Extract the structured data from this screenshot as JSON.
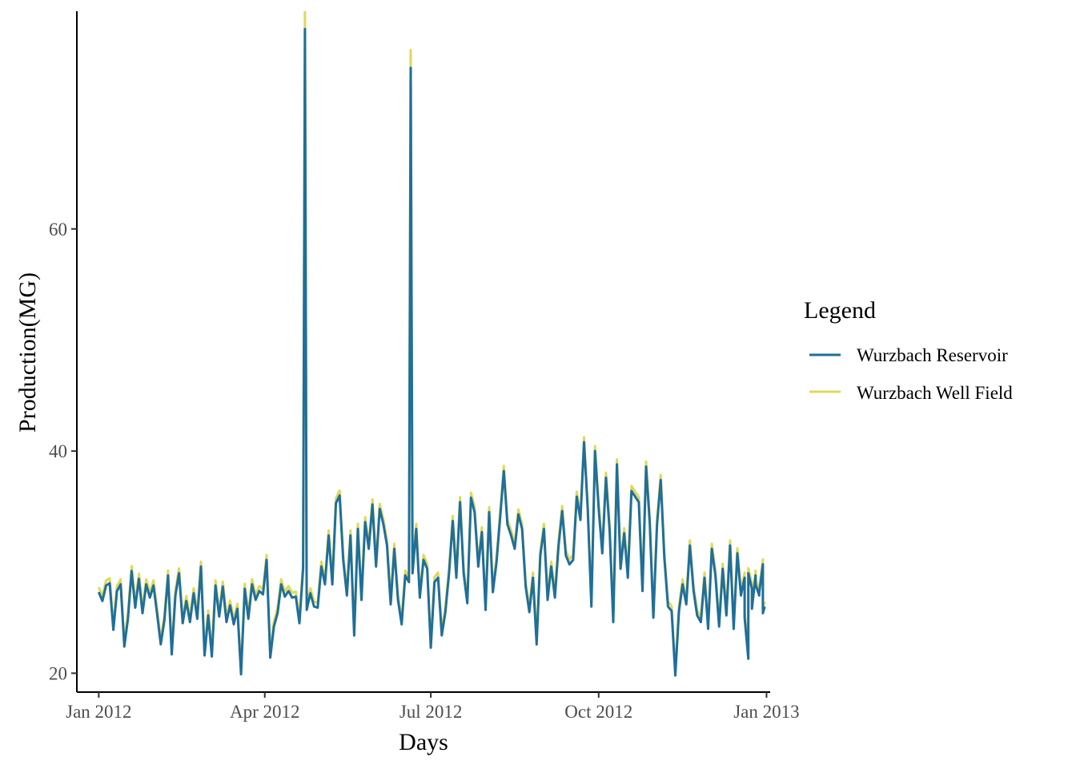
{
  "chart_data": {
    "type": "line",
    "title": "",
    "xlabel": "Days",
    "ylabel": "Production(MG)",
    "x_type": "date",
    "xlim": [
      "2011-12-20",
      "2013-01-03"
    ],
    "ylim": [
      18.3,
      79.6
    ],
    "x_ticks": [
      {
        "date": "2012-01-01",
        "label": "Jan 2012"
      },
      {
        "date": "2012-04-01",
        "label": "Apr 2012"
      },
      {
        "date": "2012-07-01",
        "label": "Jul 2012"
      },
      {
        "date": "2012-10-01",
        "label": "Oct 2012"
      },
      {
        "date": "2013-01-01",
        "label": "Jan 2013"
      }
    ],
    "y_ticks": [
      20,
      40,
      60
    ],
    "grid": false,
    "legend": {
      "title": "Legend",
      "placement": "right",
      "entries": [
        {
          "label": "Wurzbach Reservoir",
          "color": "#1f6f9a"
        },
        {
          "label": "Wurzbach Well Field",
          "color": "#e1d85a"
        }
      ]
    },
    "series": [
      {
        "name": "Wurzbach Reservoir",
        "color": "#1f6f9a",
        "offset_above": 0,
        "points": [
          [
            "2012-01-01",
            27.3
          ],
          [
            "2012-01-03",
            26.5
          ],
          [
            "2012-01-05",
            27.9
          ],
          [
            "2012-01-07",
            28.1
          ],
          [
            "2012-01-09",
            23.9
          ],
          [
            "2012-01-11",
            27.4
          ],
          [
            "2012-01-13",
            28.0
          ],
          [
            "2012-01-15",
            22.4
          ],
          [
            "2012-01-17",
            24.9
          ],
          [
            "2012-01-19",
            29.2
          ],
          [
            "2012-01-21",
            25.9
          ],
          [
            "2012-01-23",
            28.5
          ],
          [
            "2012-01-25",
            25.4
          ],
          [
            "2012-01-27",
            28.0
          ],
          [
            "2012-01-29",
            26.8
          ],
          [
            "2012-01-31",
            27.9
          ],
          [
            "2012-02-02",
            25.3
          ],
          [
            "2012-02-04",
            22.6
          ],
          [
            "2012-02-06",
            24.8
          ],
          [
            "2012-02-08",
            28.8
          ],
          [
            "2012-02-10",
            21.7
          ],
          [
            "2012-02-12",
            27.0
          ],
          [
            "2012-02-14",
            29.0
          ],
          [
            "2012-02-16",
            24.5
          ],
          [
            "2012-02-18",
            26.5
          ],
          [
            "2012-02-20",
            24.6
          ],
          [
            "2012-02-22",
            27.2
          ],
          [
            "2012-02-24",
            24.9
          ],
          [
            "2012-02-26",
            29.6
          ],
          [
            "2012-02-28",
            21.6
          ],
          [
            "2012-03-01",
            25.2
          ],
          [
            "2012-03-03",
            21.5
          ],
          [
            "2012-03-05",
            27.9
          ],
          [
            "2012-03-07",
            25.1
          ],
          [
            "2012-03-09",
            27.8
          ],
          [
            "2012-03-11",
            24.6
          ],
          [
            "2012-03-13",
            26.1
          ],
          [
            "2012-03-15",
            24.4
          ],
          [
            "2012-03-17",
            25.8
          ],
          [
            "2012-03-19",
            19.9
          ],
          [
            "2012-03-21",
            27.6
          ],
          [
            "2012-03-23",
            24.9
          ],
          [
            "2012-03-25",
            28.0
          ],
          [
            "2012-03-27",
            26.6
          ],
          [
            "2012-03-29",
            27.4
          ],
          [
            "2012-03-31",
            27.1
          ],
          [
            "2012-04-02",
            30.2
          ],
          [
            "2012-04-04",
            21.4
          ],
          [
            "2012-04-06",
            24.2
          ],
          [
            "2012-04-08",
            25.4
          ],
          [
            "2012-04-10",
            28.0
          ],
          [
            "2012-04-12",
            26.9
          ],
          [
            "2012-04-14",
            27.4
          ],
          [
            "2012-04-16",
            26.8
          ],
          [
            "2012-04-18",
            26.9
          ],
          [
            "2012-04-20",
            24.5
          ],
          [
            "2012-04-22",
            29.4
          ],
          [
            "2012-04-23",
            78.0
          ],
          [
            "2012-04-24",
            25.7
          ],
          [
            "2012-04-26",
            27.2
          ],
          [
            "2012-04-28",
            26.0
          ],
          [
            "2012-04-30",
            25.9
          ],
          [
            "2012-05-02",
            29.6
          ],
          [
            "2012-05-04",
            28.0
          ],
          [
            "2012-05-06",
            32.4
          ],
          [
            "2012-05-08",
            28.0
          ],
          [
            "2012-05-10",
            35.3
          ],
          [
            "2012-05-12",
            36.0
          ],
          [
            "2012-05-14",
            30.2
          ],
          [
            "2012-05-16",
            27.0
          ],
          [
            "2012-05-18",
            32.4
          ],
          [
            "2012-05-20",
            23.4
          ],
          [
            "2012-05-22",
            33.0
          ],
          [
            "2012-05-24",
            26.6
          ],
          [
            "2012-05-26",
            33.6
          ],
          [
            "2012-05-28",
            31.2
          ],
          [
            "2012-05-30",
            35.2
          ],
          [
            "2012-06-01",
            29.6
          ],
          [
            "2012-06-03",
            34.8
          ],
          [
            "2012-06-05",
            33.4
          ],
          [
            "2012-06-07",
            31.5
          ],
          [
            "2012-06-09",
            26.2
          ],
          [
            "2012-06-11",
            31.2
          ],
          [
            "2012-06-13",
            26.6
          ],
          [
            "2012-06-15",
            24.4
          ],
          [
            "2012-06-17",
            28.8
          ],
          [
            "2012-06-19",
            28.2
          ],
          [
            "2012-06-20",
            74.5
          ],
          [
            "2012-06-21",
            29.0
          ],
          [
            "2012-06-23",
            33.0
          ],
          [
            "2012-06-25",
            26.8
          ],
          [
            "2012-06-27",
            30.2
          ],
          [
            "2012-06-29",
            29.4
          ],
          [
            "2012-07-01",
            22.3
          ],
          [
            "2012-07-03",
            28.2
          ],
          [
            "2012-07-05",
            28.6
          ],
          [
            "2012-07-07",
            23.4
          ],
          [
            "2012-07-09",
            25.5
          ],
          [
            "2012-07-11",
            29.0
          ],
          [
            "2012-07-13",
            33.7
          ],
          [
            "2012-07-15",
            28.6
          ],
          [
            "2012-07-17",
            35.4
          ],
          [
            "2012-07-19",
            29.0
          ],
          [
            "2012-07-21",
            26.3
          ],
          [
            "2012-07-23",
            35.8
          ],
          [
            "2012-07-25",
            34.5
          ],
          [
            "2012-07-27",
            29.6
          ],
          [
            "2012-07-29",
            32.7
          ],
          [
            "2012-07-31",
            25.7
          ],
          [
            "2012-08-02",
            34.5
          ],
          [
            "2012-08-04",
            27.3
          ],
          [
            "2012-08-06",
            30.0
          ],
          [
            "2012-08-08",
            34.0
          ],
          [
            "2012-08-10",
            38.2
          ],
          [
            "2012-08-12",
            33.4
          ],
          [
            "2012-08-14",
            32.4
          ],
          [
            "2012-08-16",
            31.2
          ],
          [
            "2012-08-18",
            34.3
          ],
          [
            "2012-08-20",
            33.0
          ],
          [
            "2012-08-22",
            27.8
          ],
          [
            "2012-08-24",
            25.5
          ],
          [
            "2012-08-26",
            28.6
          ],
          [
            "2012-08-28",
            22.6
          ],
          [
            "2012-08-30",
            30.6
          ],
          [
            "2012-09-01",
            33.0
          ],
          [
            "2012-09-03",
            26.6
          ],
          [
            "2012-09-05",
            29.6
          ],
          [
            "2012-09-07",
            26.8
          ],
          [
            "2012-09-09",
            31.4
          ],
          [
            "2012-09-11",
            34.6
          ],
          [
            "2012-09-13",
            30.6
          ],
          [
            "2012-09-15",
            29.8
          ],
          [
            "2012-09-17",
            30.2
          ],
          [
            "2012-09-19",
            35.9
          ],
          [
            "2012-09-21",
            33.8
          ],
          [
            "2012-09-23",
            40.8
          ],
          [
            "2012-09-25",
            34.8
          ],
          [
            "2012-09-27",
            26.0
          ],
          [
            "2012-09-29",
            40.0
          ],
          [
            "2012-10-01",
            34.8
          ],
          [
            "2012-10-03",
            30.8
          ],
          [
            "2012-10-05",
            37.6
          ],
          [
            "2012-10-07",
            32.8
          ],
          [
            "2012-10-09",
            24.6
          ],
          [
            "2012-10-11",
            38.8
          ],
          [
            "2012-10-13",
            29.4
          ],
          [
            "2012-10-15",
            32.6
          ],
          [
            "2012-10-17",
            28.6
          ],
          [
            "2012-10-19",
            36.4
          ],
          [
            "2012-10-21",
            35.9
          ],
          [
            "2012-10-23",
            35.4
          ],
          [
            "2012-10-25",
            27.4
          ],
          [
            "2012-10-27",
            38.6
          ],
          [
            "2012-10-29",
            33.5
          ],
          [
            "2012-10-31",
            25.0
          ],
          [
            "2012-11-02",
            33.4
          ],
          [
            "2012-11-04",
            37.4
          ],
          [
            "2012-11-06",
            30.4
          ],
          [
            "2012-11-08",
            26.0
          ],
          [
            "2012-11-10",
            25.6
          ],
          [
            "2012-11-12",
            19.8
          ],
          [
            "2012-11-14",
            25.6
          ],
          [
            "2012-11-16",
            28.0
          ],
          [
            "2012-11-18",
            26.2
          ],
          [
            "2012-11-20",
            31.5
          ],
          [
            "2012-11-22",
            27.4
          ],
          [
            "2012-11-24",
            25.2
          ],
          [
            "2012-11-26",
            24.6
          ],
          [
            "2012-11-28",
            28.6
          ],
          [
            "2012-11-30",
            24.0
          ],
          [
            "2012-12-02",
            31.2
          ],
          [
            "2012-12-04",
            28.8
          ],
          [
            "2012-12-06",
            24.2
          ],
          [
            "2012-12-08",
            29.4
          ],
          [
            "2012-12-10",
            25.2
          ],
          [
            "2012-12-12",
            31.5
          ],
          [
            "2012-12-14",
            24.0
          ],
          [
            "2012-12-16",
            30.8
          ],
          [
            "2012-12-18",
            27.0
          ],
          [
            "2012-12-20",
            28.6
          ],
          [
            "2012-12-22",
            21.3
          ],
          [
            "2012-12-24",
            27.6
          ],
          [
            "2012-12-26",
            28.8
          ],
          [
            "2012-12-28",
            27.0
          ],
          [
            "2012-12-30",
            29.8
          ],
          [
            "2012-12-20",
            25.0
          ],
          [
            "2012-12-22",
            29.0
          ],
          [
            "2012-12-24",
            25.8
          ],
          [
            "2012-12-26",
            28.0
          ],
          [
            "2012-12-28",
            27.2
          ],
          [
            "2012-12-30",
            25.4
          ],
          [
            "2012-12-31",
            26.0
          ]
        ]
      }
    ]
  }
}
